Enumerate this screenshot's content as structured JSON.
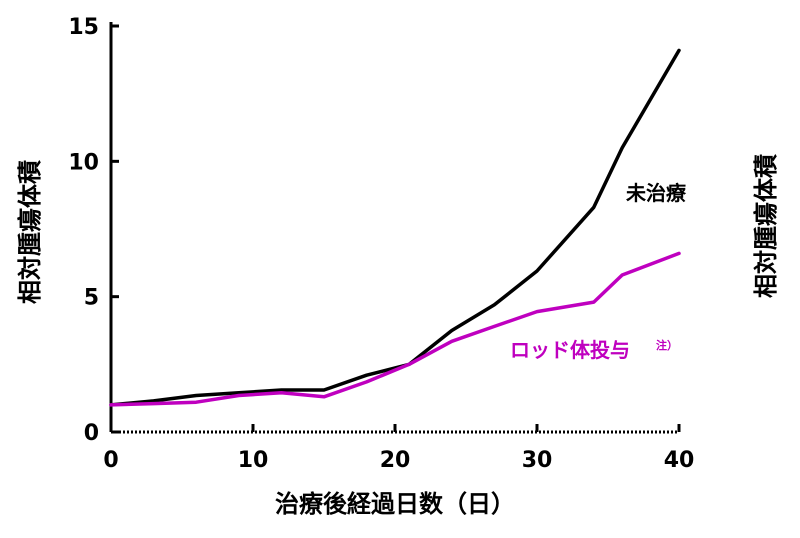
{
  "chart_data": {
    "type": "line",
    "xlabel": "治療後経過日数（日）",
    "ylabel": "相対腫瘍体積",
    "ylabel_right": "相対腫瘍体積",
    "xlim": [
      0,
      40
    ],
    "ylim": [
      0,
      15
    ],
    "xticks": [
      "0",
      "10",
      "20",
      "30",
      "40"
    ],
    "yticks": [
      "0",
      "5",
      "10",
      "15"
    ],
    "series": [
      {
        "name": "未治療",
        "color": "#000000",
        "x": [
          0,
          3,
          6,
          9,
          12,
          15,
          18,
          21,
          24,
          27,
          30,
          34,
          36,
          40
        ],
        "y": [
          1.0,
          1.15,
          1.35,
          1.45,
          1.55,
          1.55,
          2.1,
          2.5,
          3.75,
          4.7,
          5.95,
          8.3,
          10.5,
          14.1
        ]
      },
      {
        "name": "ロッド体投与",
        "note": "注）",
        "color": "#bf00bf",
        "x": [
          0,
          3,
          6,
          9,
          12,
          15,
          18,
          21,
          24,
          27,
          30,
          34,
          36,
          40
        ],
        "y": [
          1.0,
          1.05,
          1.1,
          1.35,
          1.45,
          1.3,
          1.85,
          2.5,
          3.35,
          3.9,
          4.45,
          4.8,
          5.8,
          6.6
        ]
      }
    ]
  }
}
